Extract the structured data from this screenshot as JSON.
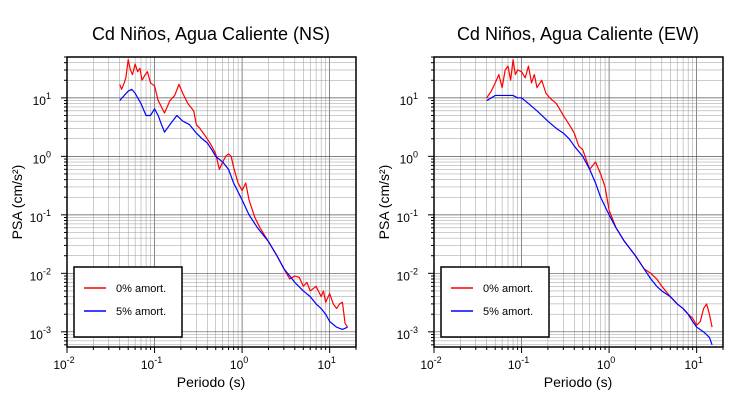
{
  "chart_data": [
    {
      "type": "line",
      "title": "Cd Niños, Agua Caliente (NS)",
      "xlabel": "Periodo (s)",
      "ylabel": "PSA (cm/s²)",
      "x_scale": "log",
      "y_scale": "log",
      "xlim": [
        0.01,
        20
      ],
      "ylim": [
        0.00055,
        50
      ],
      "grid": true,
      "legend_position": "bottom-left",
      "series": [
        {
          "name": "0% amort.",
          "color": "#ff0000",
          "points": [
            [
              0.04,
              17
            ],
            [
              0.042,
              14
            ],
            [
              0.045,
              18
            ],
            [
              0.047,
              22
            ],
            [
              0.05,
              45
            ],
            [
              0.053,
              30
            ],
            [
              0.056,
              25
            ],
            [
              0.06,
              38
            ],
            [
              0.064,
              28
            ],
            [
              0.068,
              32
            ],
            [
              0.072,
              20
            ],
            [
              0.077,
              24
            ],
            [
              0.083,
              28
            ],
            [
              0.09,
              18
            ],
            [
              0.1,
              16
            ],
            [
              0.11,
              9
            ],
            [
              0.12,
              7
            ],
            [
              0.13,
              5.5
            ],
            [
              0.15,
              9
            ],
            [
              0.17,
              11
            ],
            [
              0.19,
              17
            ],
            [
              0.21,
              12
            ],
            [
              0.24,
              8
            ],
            [
              0.28,
              6
            ],
            [
              0.3,
              3.5
            ],
            [
              0.33,
              3
            ],
            [
              0.36,
              2.5
            ],
            [
              0.4,
              2
            ],
            [
              0.45,
              1.5
            ],
            [
              0.5,
              1.1
            ],
            [
              0.55,
              0.6
            ],
            [
              0.6,
              0.8
            ],
            [
              0.65,
              1.0
            ],
            [
              0.7,
              1.1
            ],
            [
              0.75,
              1.0
            ],
            [
              0.8,
              0.65
            ],
            [
              0.9,
              0.35
            ],
            [
              1.0,
              0.26
            ],
            [
              1.1,
              0.35
            ],
            [
              1.2,
              0.18
            ],
            [
              1.4,
              0.09
            ],
            [
              1.6,
              0.06
            ],
            [
              2.0,
              0.035
            ],
            [
              2.5,
              0.02
            ],
            [
              3.0,
              0.012
            ],
            [
              3.5,
              0.008
            ],
            [
              4.0,
              0.009
            ],
            [
              4.5,
              0.0085
            ],
            [
              5.0,
              0.006
            ],
            [
              5.5,
              0.007
            ],
            [
              6.0,
              0.005
            ],
            [
              7.0,
              0.006
            ],
            [
              8.0,
              0.004
            ],
            [
              8.5,
              0.005
            ],
            [
              9.0,
              0.0032
            ],
            [
              10.0,
              0.0045
            ],
            [
              11.0,
              0.003
            ],
            [
              12.0,
              0.0025
            ],
            [
              13.0,
              0.003
            ],
            [
              14.0,
              0.0032
            ],
            [
              15.0,
              0.0014
            ],
            [
              16.0,
              0.0012
            ]
          ]
        },
        {
          "name": "5% amort.",
          "color": "#0000ff",
          "points": [
            [
              0.04,
              9
            ],
            [
              0.045,
              11
            ],
            [
              0.05,
              13
            ],
            [
              0.055,
              14
            ],
            [
              0.06,
              12
            ],
            [
              0.07,
              8
            ],
            [
              0.08,
              5
            ],
            [
              0.09,
              5
            ],
            [
              0.1,
              6.5
            ],
            [
              0.11,
              5
            ],
            [
              0.12,
              3.5
            ],
            [
              0.13,
              2.6
            ],
            [
              0.15,
              3.5
            ],
            [
              0.18,
              5
            ],
            [
              0.21,
              4
            ],
            [
              0.25,
              3.5
            ],
            [
              0.3,
              2.5
            ],
            [
              0.35,
              2
            ],
            [
              0.4,
              1.7
            ],
            [
              0.45,
              1.3
            ],
            [
              0.5,
              1.0
            ],
            [
              0.6,
              0.8
            ],
            [
              0.7,
              0.6
            ],
            [
              0.8,
              0.35
            ],
            [
              1.0,
              0.18
            ],
            [
              1.2,
              0.1
            ],
            [
              1.5,
              0.06
            ],
            [
              2.0,
              0.035
            ],
            [
              2.5,
              0.02
            ],
            [
              3.0,
              0.012
            ],
            [
              3.5,
              0.009
            ],
            [
              4.0,
              0.007
            ],
            [
              5.0,
              0.005
            ],
            [
              6.0,
              0.004
            ],
            [
              7.0,
              0.003
            ],
            [
              8.0,
              0.0025
            ],
            [
              9.0,
              0.002
            ],
            [
              10.0,
              0.0015
            ],
            [
              12.0,
              0.0012
            ],
            [
              14.0,
              0.0011
            ],
            [
              16.0,
              0.0012
            ]
          ]
        }
      ]
    },
    {
      "type": "line",
      "title": "Cd Niños, Agua Caliente (EW)",
      "xlabel": "Periodo (s)",
      "ylabel": "PSA (cm/s²)",
      "x_scale": "log",
      "y_scale": "log",
      "xlim": [
        0.01,
        20
      ],
      "ylim": [
        0.00055,
        50
      ],
      "grid": true,
      "legend_position": "bottom-left",
      "series": [
        {
          "name": "0% amort.",
          "color": "#ff0000",
          "points": [
            [
              0.04,
              10
            ],
            [
              0.045,
              13
            ],
            [
              0.05,
              18
            ],
            [
              0.055,
              25
            ],
            [
              0.06,
              15
            ],
            [
              0.065,
              30
            ],
            [
              0.07,
              35
            ],
            [
              0.075,
              20
            ],
            [
              0.08,
              45
            ],
            [
              0.085,
              25
            ],
            [
              0.09,
              30
            ],
            [
              0.1,
              28
            ],
            [
              0.11,
              22
            ],
            [
              0.12,
              35
            ],
            [
              0.13,
              18
            ],
            [
              0.14,
              25
            ],
            [
              0.15,
              15
            ],
            [
              0.17,
              20
            ],
            [
              0.19,
              12
            ],
            [
              0.21,
              10
            ],
            [
              0.25,
              8
            ],
            [
              0.3,
              5
            ],
            [
              0.35,
              3.5
            ],
            [
              0.4,
              2.5
            ],
            [
              0.45,
              1.5
            ],
            [
              0.5,
              1.3
            ],
            [
              0.6,
              0.6
            ],
            [
              0.7,
              0.8
            ],
            [
              0.8,
              0.5
            ],
            [
              0.9,
              0.3
            ],
            [
              1.0,
              0.12
            ],
            [
              1.2,
              0.06
            ],
            [
              1.5,
              0.035
            ],
            [
              2.0,
              0.02
            ],
            [
              2.5,
              0.012
            ],
            [
              3.0,
              0.01
            ],
            [
              3.5,
              0.008
            ],
            [
              4.0,
              0.006
            ],
            [
              5.0,
              0.004
            ],
            [
              6.0,
              0.003
            ],
            [
              7.0,
              0.0025
            ],
            [
              8.0,
              0.002
            ],
            [
              9.0,
              0.0017
            ],
            [
              10.0,
              0.0013
            ],
            [
              11.0,
              0.0015
            ],
            [
              12.0,
              0.0025
            ],
            [
              13.0,
              0.003
            ],
            [
              14.0,
              0.002
            ],
            [
              15.0,
              0.0012
            ]
          ]
        },
        {
          "name": "5% amort.",
          "color": "#0000ff",
          "points": [
            [
              0.04,
              9
            ],
            [
              0.05,
              11
            ],
            [
              0.06,
              11
            ],
            [
              0.07,
              11
            ],
            [
              0.08,
              11
            ],
            [
              0.09,
              10
            ],
            [
              0.1,
              10
            ],
            [
              0.12,
              8
            ],
            [
              0.15,
              6
            ],
            [
              0.2,
              4
            ],
            [
              0.25,
              3
            ],
            [
              0.3,
              2.5
            ],
            [
              0.35,
              2
            ],
            [
              0.4,
              1.5
            ],
            [
              0.5,
              1
            ],
            [
              0.6,
              0.6
            ],
            [
              0.7,
              0.35
            ],
            [
              0.8,
              0.2
            ],
            [
              1.0,
              0.1
            ],
            [
              1.2,
              0.06
            ],
            [
              1.5,
              0.035
            ],
            [
              2.0,
              0.02
            ],
            [
              2.5,
              0.012
            ],
            [
              3.0,
              0.008
            ],
            [
              3.5,
              0.006
            ],
            [
              4.0,
              0.005
            ],
            [
              5.0,
              0.004
            ],
            [
              6.0,
              0.003
            ],
            [
              7.0,
              0.0025
            ],
            [
              8.0,
              0.002
            ],
            [
              9.0,
              0.0015
            ],
            [
              10.0,
              0.0012
            ],
            [
              12.0,
              0.001
            ],
            [
              14.0,
              0.0008
            ],
            [
              15.0,
              0.0006
            ]
          ]
        }
      ]
    }
  ]
}
